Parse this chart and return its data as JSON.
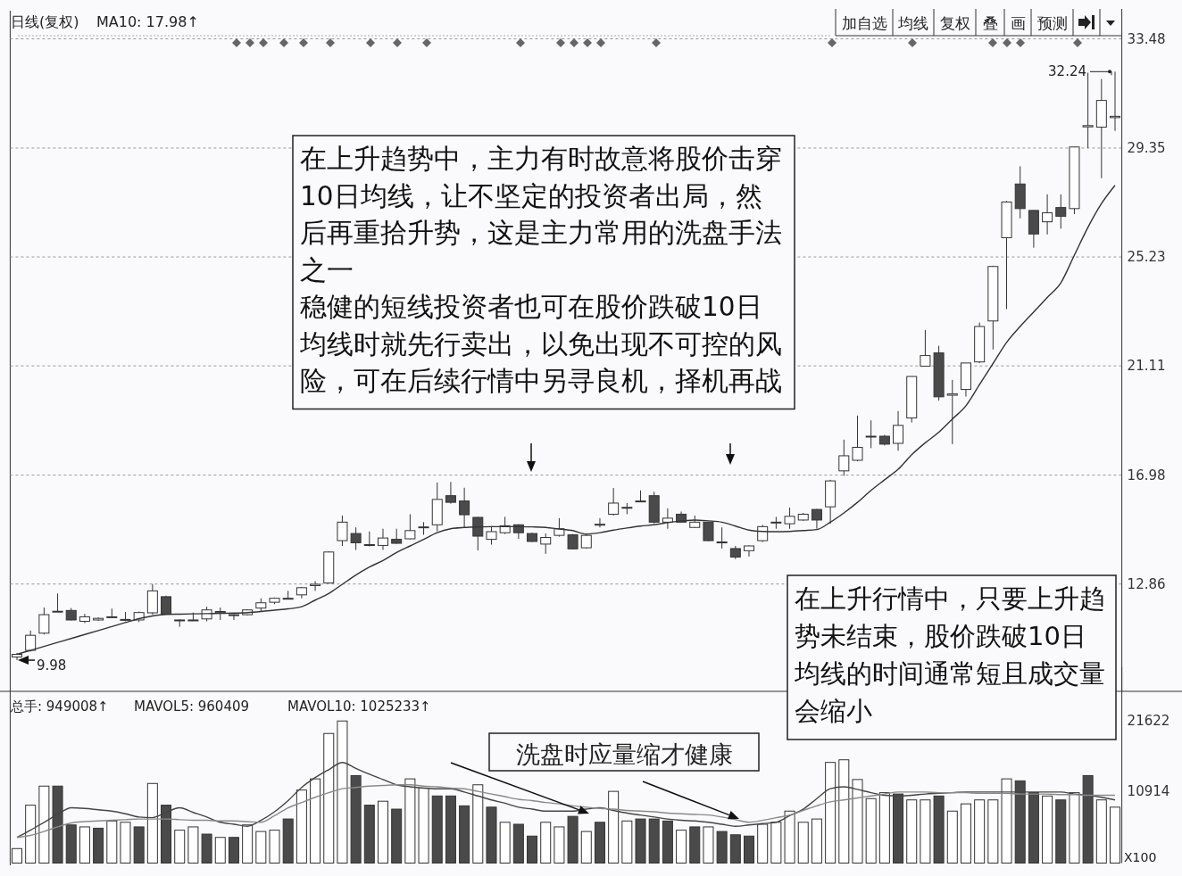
{
  "chart_data": [
    {
      "type": "candlestick",
      "categories": [
        null,
        null,
        null,
        null,
        null,
        null,
        null,
        null,
        null,
        null,
        null,
        null,
        null,
        null,
        null,
        null,
        null,
        null,
        null,
        null,
        null,
        null,
        null,
        null,
        null,
        null,
        null,
        null,
        null,
        null,
        null,
        null,
        null,
        null,
        null,
        null,
        null,
        null,
        null,
        null,
        null,
        null,
        null,
        null,
        null,
        null,
        null,
        null,
        null,
        null,
        null,
        null,
        null,
        null,
        null,
        null,
        null,
        null,
        null,
        null,
        null,
        null,
        null,
        null,
        null,
        null,
        null,
        null,
        null,
        null,
        null,
        null,
        null,
        null,
        null,
        null,
        null,
        null,
        null,
        null,
        null,
        null
      ],
      "ohlc": [
        [
          10.1,
          10.25,
          9.98,
          10.2
        ],
        [
          10.35,
          11.1,
          10.3,
          10.92
        ],
        [
          11.0,
          11.97,
          10.95,
          11.7
        ],
        [
          11.83,
          12.5,
          11.8,
          11.83
        ],
        [
          11.86,
          11.95,
          11.48,
          11.5
        ],
        [
          11.45,
          11.73,
          11.38,
          11.62
        ],
        [
          11.5,
          11.6,
          11.47,
          11.56
        ],
        [
          11.6,
          11.93,
          11.58,
          11.62
        ],
        [
          11.5,
          11.8,
          11.45,
          11.52
        ],
        [
          11.5,
          11.82,
          11.42,
          11.78
        ],
        [
          11.77,
          12.86,
          11.7,
          12.6
        ],
        [
          12.38,
          12.42,
          11.7,
          11.72
        ],
        [
          11.5,
          11.52,
          11.24,
          11.48
        ],
        [
          11.5,
          11.78,
          11.48,
          11.5
        ],
        [
          11.54,
          12.0,
          11.45,
          11.88
        ],
        [
          11.78,
          11.97,
          11.5,
          11.82
        ],
        [
          11.7,
          11.72,
          11.5,
          11.68
        ],
        [
          11.7,
          11.9,
          11.68,
          11.88
        ],
        [
          11.95,
          12.32,
          11.82,
          12.15
        ],
        [
          12.17,
          12.35,
          12.1,
          12.32
        ],
        [
          12.3,
          12.6,
          12.28,
          12.32
        ],
        [
          12.45,
          12.75,
          12.32,
          12.72
        ],
        [
          12.8,
          12.97,
          12.6,
          12.85
        ],
        [
          12.9,
          14.1,
          12.88,
          14.07
        ],
        [
          14.5,
          15.45,
          14.3,
          15.2
        ],
        [
          14.77,
          15.0,
          14.15,
          14.42
        ],
        [
          14.35,
          14.85,
          14.28,
          14.33
        ],
        [
          14.32,
          14.95,
          14.15,
          14.6
        ],
        [
          14.55,
          14.95,
          14.38,
          14.4
        ],
        [
          14.57,
          15.5,
          14.55,
          14.88
        ],
        [
          15.0,
          15.2,
          14.72,
          15.02
        ],
        [
          15.1,
          16.7,
          14.85,
          16.06
        ],
        [
          16.2,
          16.72,
          15.9,
          15.95
        ],
        [
          16.0,
          16.5,
          15.0,
          15.48
        ],
        [
          15.38,
          15.4,
          14.13,
          14.67
        ],
        [
          14.55,
          15.05,
          14.35,
          14.84
        ],
        [
          14.8,
          15.4,
          14.75,
          15.06
        ],
        [
          15.1,
          15.12,
          14.57,
          14.8
        ],
        [
          14.77,
          14.8,
          14.45,
          14.47
        ],
        [
          14.37,
          14.77,
          14.0,
          14.62
        ],
        [
          14.7,
          15.35,
          14.65,
          14.95
        ],
        [
          14.72,
          14.75,
          14.17,
          14.19
        ],
        [
          14.23,
          14.75,
          14.2,
          14.7
        ],
        [
          15.1,
          15.35,
          15.0,
          15.12
        ],
        [
          15.5,
          16.49,
          15.45,
          15.92
        ],
        [
          15.74,
          15.92,
          15.5,
          15.76
        ],
        [
          15.98,
          16.4,
          15.96,
          16.0
        ],
        [
          16.2,
          16.35,
          15.15,
          15.2
        ],
        [
          15.2,
          15.72,
          14.95,
          15.35
        ],
        [
          15.5,
          15.6,
          15.18,
          15.2
        ],
        [
          15.0,
          15.45,
          14.98,
          15.2
        ],
        [
          15.2,
          15.2,
          14.48,
          14.5
        ],
        [
          14.45,
          15.0,
          14.2,
          14.43
        ],
        [
          14.2,
          14.3,
          13.8,
          13.88
        ],
        [
          14.12,
          14.32,
          13.9,
          14.3
        ],
        [
          14.5,
          15.1,
          14.45,
          15.03
        ],
        [
          15.18,
          15.4,
          14.95,
          15.2
        ],
        [
          15.14,
          15.75,
          14.95,
          15.42
        ],
        [
          15.28,
          15.55,
          15.25,
          15.5
        ],
        [
          15.68,
          15.7,
          14.95,
          15.28
        ],
        [
          15.78,
          16.8,
          15.14,
          16.76
        ],
        [
          17.14,
          18.32,
          16.95,
          17.71
        ],
        [
          17.54,
          19.23,
          17.5,
          18.03
        ],
        [
          18.42,
          19.05,
          18.0,
          18.45
        ],
        [
          18.45,
          18.5,
          18.1,
          18.15
        ],
        [
          18.18,
          19.4,
          17.9,
          18.86
        ],
        [
          19.14,
          20.72,
          18.97,
          20.71
        ],
        [
          21.1,
          22.47,
          21.08,
          21.5
        ],
        [
          21.6,
          21.87,
          19.8,
          19.94
        ],
        [
          20.0,
          20.58,
          18.15,
          20.05
        ],
        [
          20.22,
          21.22,
          19.95,
          21.22
        ],
        [
          21.26,
          22.75,
          21.22,
          22.6
        ],
        [
          22.81,
          24.9,
          21.73,
          24.87
        ],
        [
          25.96,
          27.35,
          23.26,
          27.31
        ],
        [
          27.99,
          28.66,
          26.69,
          27.06
        ],
        [
          26.99,
          27.0,
          25.58,
          26.1
        ],
        [
          26.56,
          27.6,
          26.08,
          26.9
        ],
        [
          27.1,
          27.6,
          26.3,
          26.77
        ],
        [
          27.06,
          29.4,
          26.85,
          29.39
        ],
        [
          30.15,
          32.2,
          29.35,
          30.2
        ],
        [
          30.14,
          31.96,
          28.21,
          31.15
        ],
        [
          30.5,
          32.24,
          30.0,
          30.55
        ]
      ],
      "series": [
        {
          "type": "line",
          "color": "#333333",
          "values": [
            10.2,
            10.35,
            10.5,
            10.65,
            10.8,
            10.95,
            11.1,
            11.25,
            11.4,
            11.55,
            11.65,
            11.71,
            11.72,
            11.73,
            11.74,
            11.75,
            11.76,
            11.78,
            11.82,
            11.87,
            11.92,
            12.0,
            12.25,
            12.5,
            12.85,
            13.2,
            13.5,
            13.75,
            14.05,
            14.3,
            14.55,
            14.8,
            14.95,
            15.0,
            15.02,
            15.03,
            15.03,
            15.03,
            15.02,
            15.0,
            14.94,
            14.88,
            14.75,
            14.8,
            14.9,
            14.98,
            15.05,
            15.1,
            15.18,
            15.24,
            15.28,
            15.25,
            15.2,
            15.05,
            14.9,
            14.85,
            14.84,
            14.85,
            14.88,
            14.92,
            15.2,
            15.55,
            15.95,
            16.4,
            16.8,
            17.2,
            17.75,
            18.2,
            18.6,
            19.1,
            19.6,
            20.4,
            21.2,
            22.0,
            22.6,
            23.15,
            23.7,
            24.25,
            25.3,
            26.35,
            27.25,
            27.94
          ]
        }
      ],
      "ylim": [
        8.8,
        33.6
      ],
      "yticks": [
        12.86,
        16.98,
        21.11,
        25.23,
        29.35,
        33.48
      ],
      "grid": "y",
      "tick_labels": "y",
      "annotations": [
        "日线(复权)",
        "MA10: 17.98↑",
        "加自选",
        "均线",
        "复权",
        "叠",
        "画",
        "预测",
        "在上升趋势中，主力有时故意将股价击穿10日均线，让不坚定的投资者出局，然后再重拾升势，这是主力常用的洗盘手法之一",
        "稳健的短线投资者也可在股价跌破10日均线时就先行卖出，以免出现不可控的风险，可在后续行情中另寻良机，择机再战",
        "在上升行情中，只要上升趋势未结束，股价跌破10日均线的时间通常短且成交量会缩小",
        "32.24",
        "9.98"
      ]
    },
    {
      "type": "bar",
      "categories": [
        null,
        null,
        null,
        null,
        null,
        null,
        null,
        null,
        null,
        null,
        null,
        null,
        null,
        null,
        null,
        null,
        null,
        null,
        null,
        null,
        null,
        null,
        null,
        null,
        null,
        null,
        null,
        null,
        null,
        null,
        null,
        null,
        null,
        null,
        null,
        null,
        null,
        null,
        null,
        null,
        null,
        null,
        null,
        null,
        null,
        null,
        null,
        null,
        null,
        null,
        null,
        null,
        null,
        null,
        null,
        null,
        null,
        null,
        null,
        null,
        null,
        null,
        null,
        null,
        null,
        null,
        null,
        null,
        null,
        null,
        null,
        null,
        null,
        null,
        null,
        null,
        null,
        null,
        null,
        null,
        null,
        null
      ],
      "series": [
        {
          "type": "bar",
          "values": [
            2200,
            8800,
            11700,
            11700,
            5800,
            5500,
            5300,
            6400,
            6200,
            5500,
            12100,
            8800,
            5000,
            5500,
            4400,
            3900,
            3900,
            5800,
            4800,
            5000,
            6700,
            11100,
            12800,
            19700,
            21600,
            13300,
            8800,
            9400,
            8200,
            12800,
            11400,
            10200,
            10200,
            8700,
            11900,
            8500,
            6200,
            5900,
            4100,
            6200,
            5500,
            7100,
            4800,
            6200,
            10900,
            6400,
            6700,
            6700,
            6400,
            5000,
            5500,
            5500,
            4800,
            4300,
            4100,
            5900,
            6200,
            7900,
            6200,
            6700,
            15300,
            15700,
            12700,
            9800,
            10700,
            10500,
            9600,
            9600,
            10200,
            7900,
            9000,
            9600,
            9600,
            12800,
            12500,
            10700,
            10200,
            9600,
            10700,
            13300,
            9600,
            8500
          ],
          "colors": [
            "#ffffff",
            "#ffffff",
            "#ffffff",
            "#4a4a4a",
            "#4a4a4a",
            "#ffffff",
            "#4a4a4a",
            "#ffffff",
            "#ffffff",
            "#4a4a4a",
            "#ffffff",
            "#4a4a4a",
            "#ffffff",
            "#ffffff",
            "#4a4a4a",
            "#ffffff",
            "#4a4a4a",
            "#ffffff",
            "#ffffff",
            "#ffffff",
            "#4a4a4a",
            "#ffffff",
            "#ffffff",
            "#ffffff",
            "#ffffff",
            "#4a4a4a",
            "#4a4a4a",
            "#ffffff",
            "#4a4a4a",
            "#ffffff",
            "#ffffff",
            "#4a4a4a",
            "#4a4a4a",
            "#4a4a4a",
            "#ffffff",
            "#4a4a4a",
            "#ffffff",
            "#4a4a4a",
            "#4a4a4a",
            "#ffffff",
            "#ffffff",
            "#4a4a4a",
            "#ffffff",
            "#4a4a4a",
            "#ffffff",
            "#ffffff",
            "#4a4a4a",
            "#4a4a4a",
            "#4a4a4a",
            "#ffffff",
            "#4a4a4a",
            "#ffffff",
            "#4a4a4a",
            "#4a4a4a",
            "#4a4a4a",
            "#ffffff",
            "#ffffff",
            "#ffffff",
            "#ffffff",
            "#ffffff",
            "#ffffff",
            "#ffffff",
            "#ffffff",
            "#ffffff",
            "#ffffff",
            "#4a4a4a",
            "#ffffff",
            "#ffffff",
            "#4a4a4a",
            "#ffffff",
            "#ffffff",
            "#ffffff",
            "#ffffff",
            "#ffffff",
            "#4a4a4a",
            "#4a4a4a",
            "#ffffff",
            "#4a4a4a",
            "#ffffff",
            "#4a4a4a",
            "#ffffff",
            "#ffffff"
          ]
        },
        {
          "type": "line",
          "color": "#444444",
          "values": [
            3900,
            5000,
            6200,
            7400,
            8400,
            8300,
            8100,
            7900,
            7500,
            7000,
            6900,
            7700,
            8400,
            7700,
            7000,
            6200,
            5900,
            5600,
            6500,
            7800,
            9500,
            11500,
            13000,
            14200,
            15300,
            14400,
            13500,
            12700,
            11900,
            11600,
            11400,
            11300,
            11300,
            10800,
            10200,
            9600,
            9100,
            8500,
            8200,
            7900,
            7900,
            7900,
            8200,
            8400,
            8000,
            7600,
            7300,
            7000,
            6700,
            6500,
            6400,
            6200,
            5900,
            5600,
            5800,
            6000,
            6200,
            7200,
            8200,
            9800,
            11300,
            11600,
            11200,
            10700,
            10300,
            10200,
            10300,
            10500,
            10600,
            10700,
            10800,
            10800,
            10800,
            10800,
            10800,
            10800,
            10800,
            10800,
            10500,
            10300,
            10000,
            9600
          ]
        },
        {
          "type": "line",
          "color": "#8a8a8a",
          "values": [
            3900,
            4200,
            4800,
            5500,
            6100,
            6300,
            6400,
            6500,
            6600,
            6700,
            6700,
            6700,
            6600,
            6500,
            6500,
            6400,
            6400,
            6300,
            6200,
            7200,
            8400,
            9200,
            10000,
            10700,
            11300,
            11500,
            11700,
            11800,
            11900,
            11900,
            11700,
            11600,
            11400,
            11300,
            10900,
            10500,
            10100,
            9700,
            9500,
            9200,
            9000,
            8700,
            8500,
            8300,
            8200,
            8000,
            7900,
            7800,
            7600,
            7500,
            7400,
            7300,
            7000,
            6600,
            6200,
            6500,
            6900,
            7300,
            8000,
            8700,
            9300,
            9600,
            9900,
            10200,
            10500,
            10800,
            10800,
            10800,
            10700,
            10700,
            10700,
            10600,
            10600,
            10600,
            10500,
            10500,
            10500,
            10400,
            10400,
            10300,
            10300,
            10300
          ]
        }
      ],
      "ylim": [
        0,
        25700
      ],
      "yticks": [
        10914,
        21622
      ],
      "tick_labels": "y",
      "annotations": [
        "总手: 949008↑",
        "MAVOL5: 960409",
        "MAVOL10: 1025233↑",
        "洗盘时应量缩才健康",
        "X100"
      ]
    }
  ]
}
